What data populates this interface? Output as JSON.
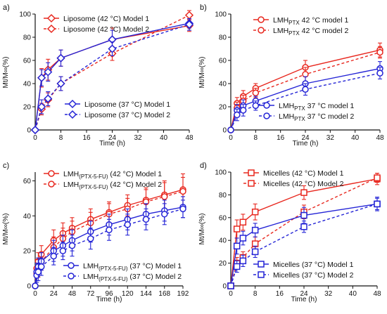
{
  "colors": {
    "red": "#e8281f",
    "blue": "#2424d6",
    "axis": "#111111"
  },
  "chart_data": [
    {
      "panel": "a)",
      "type": "line",
      "xlabel": "Time (h)",
      "ylabel": "Mt/M∞(%)",
      "xlim": [
        0,
        48
      ],
      "ylim": [
        0,
        100
      ],
      "xticks": [
        0,
        8,
        16,
        24,
        32,
        40,
        48
      ],
      "yticks": [
        0,
        20,
        40,
        60,
        80,
        100
      ],
      "marker": "diamond",
      "legend_groups": [
        {
          "position": "top-left",
          "series": [
            0,
            1
          ]
        },
        {
          "position": "bottom-right",
          "series": [
            2,
            3
          ]
        }
      ],
      "series": [
        {
          "name": "Liposome (42 °C) Model 1",
          "color": "red",
          "dash": false,
          "x": [
            0,
            2,
            4,
            8,
            24,
            48
          ],
          "y": [
            0,
            45,
            52,
            62,
            78,
            90
          ],
          "err": [
            0,
            8,
            9,
            7,
            10,
            5
          ]
        },
        {
          "name": "Liposome (42 °C) Model 2",
          "color": "red",
          "dash": true,
          "x": [
            0,
            2,
            4,
            8,
            24,
            48
          ],
          "y": [
            0,
            18,
            26,
            40,
            66,
            99
          ],
          "err": [
            0,
            5,
            6,
            6,
            6,
            4
          ]
        },
        {
          "name": "Liposome (37 °C) Model 1",
          "color": "blue",
          "dash": false,
          "x": [
            0,
            2,
            4,
            8,
            24,
            48
          ],
          "y": [
            0,
            45,
            50,
            62,
            78,
            92
          ],
          "err": [
            0,
            7,
            8,
            7,
            8,
            4
          ]
        },
        {
          "name": "Liposome (37 °C) Model 2",
          "color": "blue",
          "dash": true,
          "x": [
            0,
            2,
            4,
            8,
            24,
            48
          ],
          "y": [
            0,
            20,
            27,
            40,
            70,
            91
          ],
          "err": [
            0,
            6,
            6,
            6,
            6,
            5
          ]
        }
      ]
    },
    {
      "panel": "b)",
      "type": "line",
      "xlabel": "Time (h)",
      "ylabel": "Mt/M∞(%)",
      "xlim": [
        0,
        48
      ],
      "ylim": [
        0,
        100
      ],
      "xticks": [
        0,
        8,
        16,
        24,
        32,
        40,
        48
      ],
      "yticks": [
        0,
        20,
        40,
        60,
        80,
        100
      ],
      "marker": "circle",
      "legend_groups": [
        {
          "position": "top-right",
          "series": [
            0,
            1
          ]
        },
        {
          "position": "bottom-right",
          "series": [
            2,
            3
          ]
        }
      ],
      "series": [
        {
          "name": "LMHPTX 42 °C model 1",
          "color": "red",
          "dash": false,
          "x": [
            0,
            2,
            4,
            8,
            24,
            48
          ],
          "y": [
            0,
            23,
            29,
            36,
            54,
            69
          ],
          "err": [
            0,
            5,
            5,
            4,
            6,
            6
          ]
        },
        {
          "name": "LMHPTX 42 °C model 2",
          "color": "red",
          "dash": true,
          "x": [
            0,
            2,
            4,
            8,
            24,
            48
          ],
          "y": [
            0,
            19,
            25,
            32,
            48,
            67
          ],
          "err": [
            0,
            5,
            5,
            4,
            6,
            5
          ]
        },
        {
          "name": "LMHPTX 37 °C model 1",
          "color": "blue",
          "dash": false,
          "x": [
            0,
            2,
            4,
            8,
            24,
            48
          ],
          "y": [
            0,
            17,
            21,
            25,
            40,
            53
          ],
          "err": [
            0,
            5,
            5,
            4,
            6,
            6
          ]
        },
        {
          "name": "LMHPTX 37 °C model 2",
          "color": "blue",
          "dash": true,
          "x": [
            0,
            2,
            4,
            8,
            24,
            48
          ],
          "y": [
            0,
            13,
            17,
            21,
            35,
            49
          ],
          "err": [
            0,
            5,
            5,
            4,
            5,
            5
          ]
        }
      ]
    },
    {
      "panel": "c)",
      "type": "line",
      "xlabel": "Time (h)",
      "ylabel": "Mt/M∞(%)",
      "xlim": [
        0,
        192
      ],
      "ylim": [
        0,
        65
      ],
      "xticks": [
        0,
        24,
        48,
        72,
        96,
        120,
        144,
        168,
        192
      ],
      "yticks": [
        0,
        20,
        40,
        60
      ],
      "marker": "circle",
      "legend_groups": [
        {
          "position": "top-left",
          "series": [
            0,
            1
          ]
        },
        {
          "position": "bottom-right",
          "series": [
            2,
            3
          ]
        }
      ],
      "series": [
        {
          "name": "LMH(PTX-5-FU) (42 °C) Model 1",
          "color": "red",
          "dash": false,
          "x": [
            0,
            2,
            4,
            8,
            24,
            36,
            48,
            72,
            96,
            120,
            144,
            168,
            192
          ],
          "y": [
            0,
            10,
            14,
            18,
            26,
            30,
            33,
            38,
            42,
            46,
            49,
            52,
            55
          ],
          "err": [
            0,
            5,
            5,
            5,
            6,
            6,
            6,
            6,
            6,
            6,
            7,
            8,
            9
          ]
        },
        {
          "name": "LMH(PTX-5-FU) (42 °C) Model 2",
          "color": "red",
          "dash": true,
          "x": [
            0,
            2,
            4,
            8,
            24,
            36,
            48,
            72,
            96,
            120,
            144,
            168,
            192
          ],
          "y": [
            0,
            7,
            10,
            14,
            22,
            27,
            31,
            36,
            41,
            44,
            48,
            51,
            54
          ],
          "err": [
            0,
            4,
            5,
            5,
            6,
            6,
            6,
            6,
            6,
            6,
            7,
            8,
            8
          ]
        },
        {
          "name": "LMH(PTX-5-FU) (37 °C) Model 1",
          "color": "blue",
          "dash": false,
          "x": [
            0,
            2,
            4,
            8,
            24,
            36,
            48,
            72,
            96,
            120,
            144,
            168,
            192
          ],
          "y": [
            0,
            8,
            11,
            14,
            20,
            23,
            26,
            31,
            35,
            38,
            41,
            43,
            45
          ],
          "err": [
            0,
            5,
            5,
            5,
            6,
            6,
            6,
            6,
            6,
            6,
            6,
            6,
            6
          ]
        },
        {
          "name": "LMH(PTX-5-FU) (37 °C) Model 2",
          "color": "blue",
          "dash": true,
          "x": [
            0,
            2,
            4,
            8,
            24,
            36,
            48,
            72,
            96,
            120,
            144,
            168,
            192
          ],
          "y": [
            0,
            6,
            8,
            11,
            17,
            20,
            23,
            27,
            32,
            35,
            38,
            41,
            44
          ],
          "err": [
            0,
            4,
            5,
            5,
            5,
            5,
            6,
            6,
            6,
            6,
            6,
            6,
            5
          ]
        }
      ]
    },
    {
      "panel": "d)",
      "type": "line",
      "xlabel": "Time (h)",
      "ylabel": "Mt/M∞(%)",
      "xlim": [
        0,
        48
      ],
      "ylim": [
        0,
        100
      ],
      "xticks": [
        0,
        8,
        16,
        24,
        32,
        40,
        48
      ],
      "yticks": [
        0,
        20,
        40,
        60,
        80,
        100
      ],
      "marker": "square",
      "legend_groups": [
        {
          "position": "top-left",
          "series": [
            0,
            1
          ]
        },
        {
          "position": "bottom-right",
          "series": [
            2,
            3
          ]
        }
      ],
      "series": [
        {
          "name": "Micelles (42 °C) Model 1",
          "color": "red",
          "dash": false,
          "x": [
            0,
            2,
            4,
            8,
            24,
            48
          ],
          "y": [
            0,
            50,
            56,
            65,
            82,
            94
          ],
          "err": [
            0,
            8,
            7,
            7,
            6,
            5
          ]
        },
        {
          "name": "Micelles (42 °C) Model 2",
          "color": "red",
          "dash": true,
          "x": [
            0,
            2,
            4,
            8,
            24,
            48
          ],
          "y": [
            0,
            20,
            25,
            37,
            65,
            95
          ],
          "err": [
            0,
            5,
            5,
            6,
            6,
            4
          ]
        },
        {
          "name": "Micelles (37 °C) Model 1",
          "color": "blue",
          "dash": false,
          "x": [
            0,
            2,
            4,
            8,
            24,
            48
          ],
          "y": [
            0,
            35,
            42,
            49,
            62,
            72
          ],
          "err": [
            0,
            7,
            6,
            6,
            7,
            6
          ]
        },
        {
          "name": "Micelles (37 °C) Model 2",
          "color": "blue",
          "dash": true,
          "x": [
            0,
            2,
            4,
            8,
            24,
            48
          ],
          "y": [
            0,
            17,
            22,
            30,
            52,
            72
          ],
          "err": [
            0,
            5,
            5,
            5,
            5,
            5
          ]
        }
      ]
    }
  ]
}
